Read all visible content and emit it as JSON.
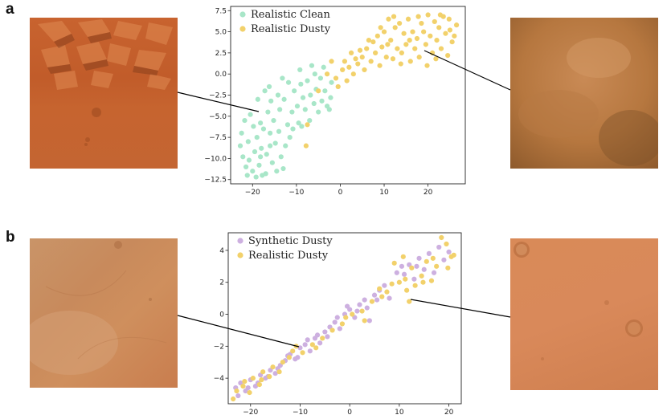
{
  "panels": [
    {
      "label": "a"
    },
    {
      "label": "b"
    }
  ],
  "colors": {
    "clean": "#a8e6c8",
    "dusty": "#f2d16b",
    "synthetic": "#cdb0e0"
  },
  "chart_data": [
    {
      "type": "scatter",
      "title": "",
      "xlabel": "",
      "ylabel": "",
      "xlim": [
        -25,
        28.5
      ],
      "ylim": [
        -13,
        8
      ],
      "xticks": [
        -20,
        -10,
        0,
        10,
        20
      ],
      "yticks": [
        -12.5,
        -10.0,
        -7.5,
        -5.0,
        -2.5,
        0.0,
        2.5,
        5.0,
        7.5
      ],
      "grid": false,
      "legend_position": "top-left",
      "series": [
        {
          "name": "Realistic Clean",
          "color": "#a8e6c8",
          "points": [
            [
              -22.8,
              -8.5
            ],
            [
              -22.2,
              -9.8
            ],
            [
              -21.5,
              -11.0
            ],
            [
              -20.8,
              -10.2
            ],
            [
              -20.0,
              -11.5
            ],
            [
              -21.0,
              -8.0
            ],
            [
              -19.5,
              -9.2
            ],
            [
              -18.5,
              -10.8
            ],
            [
              -19.0,
              -7.5
            ],
            [
              -18.0,
              -8.8
            ],
            [
              -17.5,
              -6.5
            ],
            [
              -16.8,
              -9.5
            ],
            [
              -16.0,
              -7.0
            ],
            [
              -15.5,
              -10.5
            ],
            [
              -17.0,
              -11.8
            ],
            [
              -14.8,
              -8.2
            ],
            [
              -15.2,
              -5.5
            ],
            [
              -16.5,
              -4.5
            ],
            [
              -18.2,
              -5.8
            ],
            [
              -19.8,
              -6.2
            ],
            [
              -21.8,
              -5.5
            ],
            [
              -22.5,
              -7.0
            ],
            [
              -20.5,
              -4.8
            ],
            [
              -14.0,
              -6.8
            ],
            [
              -13.5,
              -9.8
            ],
            [
              -14.5,
              -11.5
            ],
            [
              -13.0,
              -11.2
            ],
            [
              -12.5,
              -8.5
            ],
            [
              -12.0,
              -6.0
            ],
            [
              -11.5,
              -7.5
            ],
            [
              -13.8,
              -4.2
            ],
            [
              -15.8,
              -3.2
            ],
            [
              -17.2,
              -2.0
            ],
            [
              -18.8,
              -3.0
            ],
            [
              -16.2,
              -1.5
            ],
            [
              -14.2,
              -2.5
            ],
            [
              -12.8,
              -3.0
            ],
            [
              -11.0,
              -4.5
            ],
            [
              -10.5,
              -2.0
            ],
            [
              -9.8,
              -3.8
            ],
            [
              -9.0,
              -1.2
            ],
            [
              -8.5,
              -2.8
            ],
            [
              -8.0,
              -4.2
            ],
            [
              -7.5,
              -0.8
            ],
            [
              -6.8,
              -2.5
            ],
            [
              -6.0,
              -3.5
            ],
            [
              -5.5,
              -1.8
            ],
            [
              -5.0,
              -4.5
            ],
            [
              -4.2,
              -3.2
            ],
            [
              -3.5,
              -2.0
            ],
            [
              -3.0,
              -3.8
            ],
            [
              -2.5,
              -4.2
            ],
            [
              -7.0,
              -5.5
            ],
            [
              -9.5,
              -5.8
            ],
            [
              -10.8,
              -6.5
            ],
            [
              -8.8,
              -6.2
            ],
            [
              -11.8,
              -1.0
            ],
            [
              -13.2,
              -0.5
            ],
            [
              -9.2,
              0.5
            ],
            [
              -6.5,
              1.0
            ],
            [
              -5.8,
              0.0
            ],
            [
              -4.5,
              -0.5
            ],
            [
              -3.8,
              0.8
            ],
            [
              -2.0,
              -1.0
            ],
            [
              -2.2,
              -2.8
            ],
            [
              -17.8,
              -12.0
            ],
            [
              -19.2,
              -12.2
            ],
            [
              -21.2,
              -12.0
            ],
            [
              -18.2,
              -9.8
            ],
            [
              -16.0,
              -8.5
            ]
          ]
        },
        {
          "name": "Realistic Dusty",
          "color": "#f2d16b",
          "points": [
            [
              -7.5,
              -6.0
            ],
            [
              -7.8,
              -8.5
            ],
            [
              -5.0,
              -2.0
            ],
            [
              -3.0,
              0.0
            ],
            [
              -1.0,
              -0.5
            ],
            [
              0.5,
              0.5
            ],
            [
              1.5,
              -0.8
            ],
            [
              2.0,
              0.8
            ],
            [
              3.0,
              0.0
            ],
            [
              4.0,
              1.2
            ],
            [
              5.0,
              2.0
            ],
            [
              5.5,
              0.5
            ],
            [
              6.0,
              3.0
            ],
            [
              7.0,
              1.5
            ],
            [
              7.5,
              3.8
            ],
            [
              8.0,
              2.5
            ],
            [
              8.5,
              4.5
            ],
            [
              9.0,
              1.0
            ],
            [
              9.5,
              3.2
            ],
            [
              10.0,
              5.0
            ],
            [
              10.5,
              2.0
            ],
            [
              11.0,
              6.5
            ],
            [
              11.5,
              4.0
            ],
            [
              12.0,
              1.8
            ],
            [
              12.5,
              5.5
            ],
            [
              13.0,
              3.0
            ],
            [
              13.5,
              6.0
            ],
            [
              14.0,
              2.5
            ],
            [
              14.5,
              4.8
            ],
            [
              15.0,
              3.5
            ],
            [
              15.5,
              6.5
            ],
            [
              16.0,
              1.5
            ],
            [
              16.5,
              5.0
            ],
            [
              17.0,
              3.0
            ],
            [
              17.5,
              4.2
            ],
            [
              18.0,
              2.0
            ],
            [
              18.5,
              6.0
            ],
            [
              19.0,
              5.0
            ],
            [
              19.5,
              3.5
            ],
            [
              20.0,
              7.0
            ],
            [
              20.5,
              4.5
            ],
            [
              21.0,
              2.5
            ],
            [
              21.5,
              6.2
            ],
            [
              22.0,
              4.0
            ],
            [
              22.5,
              5.5
            ],
            [
              23.0,
              3.0
            ],
            [
              23.5,
              6.8
            ],
            [
              24.0,
              4.8
            ],
            [
              24.5,
              2.2
            ],
            [
              25.0,
              5.2
            ],
            [
              25.5,
              3.8
            ],
            [
              26.0,
              4.5
            ],
            [
              26.5,
              5.8
            ],
            [
              24.8,
              6.5
            ],
            [
              22.8,
              7.0
            ],
            [
              21.8,
              1.8
            ],
            [
              19.8,
              1.0
            ],
            [
              17.8,
              6.8
            ],
            [
              15.8,
              4.0
            ],
            [
              13.8,
              1.2
            ],
            [
              12.2,
              6.8
            ],
            [
              10.8,
              3.5
            ],
            [
              9.2,
              5.5
            ],
            [
              6.5,
              4.0
            ],
            [
              4.5,
              2.8
            ],
            [
              3.5,
              1.8
            ],
            [
              2.5,
              2.5
            ],
            [
              1.0,
              1.5
            ],
            [
              -0.5,
              -1.5
            ],
            [
              -2.0,
              1.5
            ]
          ]
        }
      ]
    },
    {
      "type": "scatter",
      "title": "",
      "xlabel": "",
      "ylabel": "",
      "xlim": [
        -24.5,
        22.5
      ],
      "ylim": [
        -5.6,
        5.1
      ],
      "xticks": [
        -20,
        -10,
        0,
        10,
        20
      ],
      "yticks": [
        -4,
        -2,
        0,
        2,
        4
      ],
      "grid": false,
      "legend_position": "top-left",
      "series": [
        {
          "name": "Synthetic Dusty",
          "color": "#cdb0e0",
          "points": [
            [
              -23.0,
              -4.6
            ],
            [
              -22.0,
              -4.3
            ],
            [
              -21.0,
              -4.8
            ],
            [
              -20.0,
              -4.1
            ],
            [
              -19.0,
              -4.5
            ],
            [
              -18.0,
              -3.8
            ],
            [
              -17.0,
              -4.0
            ],
            [
              -16.0,
              -3.5
            ],
            [
              -15.0,
              -3.7
            ],
            [
              -14.0,
              -3.2
            ],
            [
              -13.0,
              -2.9
            ],
            [
              -12.0,
              -2.5
            ],
            [
              -11.0,
              -2.8
            ],
            [
              -10.0,
              -2.1
            ],
            [
              -9.0,
              -1.9
            ],
            [
              -8.0,
              -2.3
            ],
            [
              -7.0,
              -1.5
            ],
            [
              -6.0,
              -1.8
            ],
            [
              -5.0,
              -1.1
            ],
            [
              -4.0,
              -0.8
            ],
            [
              -3.0,
              -0.5
            ],
            [
              -2.0,
              -0.9
            ],
            [
              -1.0,
              0.0
            ],
            [
              0.0,
              0.3
            ],
            [
              1.0,
              -0.2
            ],
            [
              2.0,
              0.6
            ],
            [
              3.0,
              0.9
            ],
            [
              4.0,
              -0.4
            ],
            [
              5.0,
              1.2
            ],
            [
              6.0,
              1.5
            ],
            [
              7.0,
              1.8
            ],
            [
              8.0,
              1.0
            ],
            [
              11.0,
              2.5
            ],
            [
              12.0,
              3.1
            ],
            [
              13.0,
              2.2
            ],
            [
              14.0,
              3.5
            ],
            [
              15.0,
              2.8
            ],
            [
              16.0,
              3.8
            ],
            [
              17.0,
              2.6
            ],
            [
              18.0,
              4.2
            ],
            [
              19.0,
              3.4
            ],
            [
              20.0,
              3.9
            ],
            [
              -22.5,
              -5.1
            ],
            [
              -20.5,
              -4.6
            ],
            [
              -18.5,
              -4.3
            ],
            [
              -16.5,
              -3.9
            ],
            [
              -14.5,
              -3.4
            ],
            [
              -12.5,
              -2.6
            ],
            [
              -10.5,
              -2.7
            ],
            [
              -8.5,
              -1.6
            ],
            [
              -6.5,
              -1.3
            ],
            [
              -4.5,
              -1.4
            ],
            [
              -2.5,
              -0.2
            ],
            [
              -0.5,
              0.5
            ],
            [
              1.5,
              0.2
            ],
            [
              3.5,
              0.4
            ],
            [
              5.5,
              0.9
            ],
            [
              9.5,
              2.6
            ],
            [
              10.5,
              3.0
            ],
            [
              13.5,
              3.0
            ]
          ]
        },
        {
          "name": "Realistic Dusty",
          "color": "#f2d16b",
          "points": [
            [
              -23.5,
              -5.3
            ],
            [
              -22.8,
              -4.8
            ],
            [
              -21.5,
              -4.5
            ],
            [
              -20.2,
              -4.9
            ],
            [
              -19.5,
              -4.0
            ],
            [
              -18.2,
              -4.4
            ],
            [
              -17.5,
              -3.6
            ],
            [
              -16.2,
              -3.9
            ],
            [
              -15.5,
              -3.3
            ],
            [
              -14.2,
              -3.6
            ],
            [
              -13.5,
              -3.0
            ],
            [
              -12.2,
              -2.7
            ],
            [
              -11.5,
              -2.3
            ],
            [
              -9.5,
              -2.4
            ],
            [
              -7.5,
              -1.9
            ],
            [
              -5.5,
              -1.5
            ],
            [
              -3.5,
              -1.0
            ],
            [
              -1.5,
              -0.6
            ],
            [
              0.5,
              0.0
            ],
            [
              2.5,
              0.2
            ],
            [
              4.5,
              0.8
            ],
            [
              6.5,
              1.1
            ],
            [
              7.5,
              1.4
            ],
            [
              8.5,
              1.9
            ],
            [
              10.0,
              2.0
            ],
            [
              10.8,
              3.6
            ],
            [
              11.5,
              1.5
            ],
            [
              12.0,
              0.8
            ],
            [
              12.5,
              2.9
            ],
            [
              13.2,
              1.8
            ],
            [
              14.5,
              2.4
            ],
            [
              15.5,
              3.3
            ],
            [
              16.5,
              2.1
            ],
            [
              17.5,
              3.0
            ],
            [
              18.5,
              4.8
            ],
            [
              19.5,
              4.4
            ],
            [
              20.5,
              3.6
            ],
            [
              21.0,
              3.7
            ],
            [
              16.8,
              3.5
            ],
            [
              14.8,
              2.0
            ],
            [
              11.2,
              2.2
            ],
            [
              9.0,
              3.2
            ],
            [
              6.0,
              1.6
            ],
            [
              3.0,
              -0.4
            ],
            [
              -0.8,
              -0.2
            ],
            [
              -6.8,
              -2.1
            ],
            [
              -10.8,
              -2.0
            ],
            [
              -17.8,
              -4.1
            ],
            [
              -21.2,
              -4.2
            ],
            [
              19.8,
              2.9
            ]
          ]
        }
      ]
    }
  ]
}
